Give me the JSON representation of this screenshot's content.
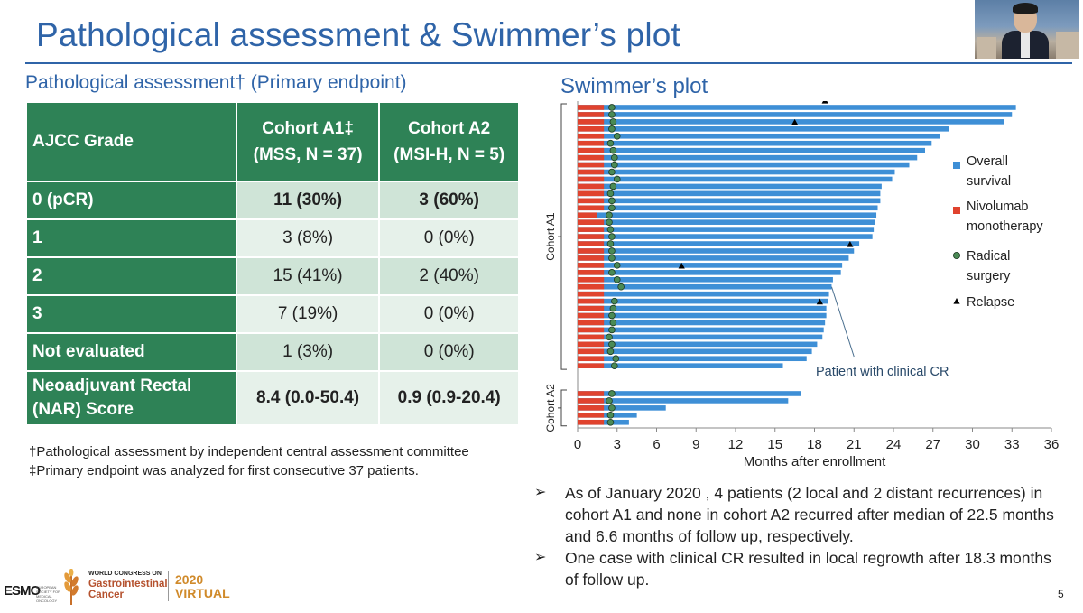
{
  "slide": {
    "title": "Pathological assessment & Swimmer’s plot",
    "page_number": "5",
    "left_heading": "Pathological assessment† (Primary endpoint)",
    "right_heading": "Swimmer’s plot"
  },
  "table": {
    "header": {
      "grade": "AJCC Grade",
      "cohort_a1_line1": "Cohort A1‡",
      "cohort_a1_line2": "(MSS, N = 37)",
      "cohort_a2_line1": "Cohort A2",
      "cohort_a2_line2": "(MSI-H, N = 5)"
    },
    "rows": [
      {
        "grade": "0 (pCR)",
        "a1": "11 (30%)",
        "a2": "3 (60%)"
      },
      {
        "grade": "1",
        "a1": "3 (8%)",
        "a2": "0 (0%)"
      },
      {
        "grade": "2",
        "a1": "15 (41%)",
        "a2": "2 (40%)"
      },
      {
        "grade": "3",
        "a1": "7 (19%)",
        "a2": "0 (0%)"
      },
      {
        "grade": "Not evaluated",
        "a1": "1 (3%)",
        "a2": "0 (0%)"
      }
    ],
    "nar": {
      "label_line1": "Neoadjuvant Rectal",
      "label_line2": "(NAR) Score",
      "a1": "8.4 (0.0-50.4)",
      "a2": "0.9 (0.9-20.4)"
    }
  },
  "footnotes": {
    "dagger": "†Pathological assessment by independent central assessment committee",
    "double_dagger": "‡Primary endpoint was analyzed for first consecutive 37 patients."
  },
  "bullets": [
    "As of January 2020 , 4  patients (2 local and 2 distant recurrences) in cohort A1 and none in cohort A2 recurred after median of 22.5 months and 6.6 months of follow up, respectively.",
    "One case with clinical CR resulted in local regrowth after 18.3 months of follow up."
  ],
  "branding": {
    "esmo": "ESMO",
    "esmo_sub": "EUROPEAN SOCIETY FOR MEDICAL ONCOLOGY",
    "congress_top": "WORLD CONGRESS ON",
    "congress_line1": "Gastrointestinal",
    "congress_line2": "Cancer",
    "virtual_line1": "2020",
    "virtual_line2": "VIRTUAL"
  },
  "colors": {
    "title": "#2f64a8",
    "header_green": "#2e8256",
    "row_light": "#cfe4d7",
    "row_lighter": "#e6f1ea",
    "overall_survival": "#3e8fd6",
    "nivolumab": "#e0432e",
    "surgery_marker": "#4a8a55",
    "relapse_marker": "#000000"
  },
  "chart_data": {
    "type": "bar",
    "subtype": "swimmer",
    "title": "Swimmer’s plot",
    "xlabel": "Months after enrollment",
    "xlim": [
      0,
      36
    ],
    "xticks": [
      "0",
      "3",
      "6",
      "9",
      "12",
      "15",
      "18",
      "21",
      "24",
      "27",
      "30",
      "33",
      "36"
    ],
    "legend": [
      "Overall survival",
      "Nivolumab monotherapy",
      "Radical surgery",
      "Relapse"
    ],
    "annotation": "Patient with clinical CR",
    "annotation_target": {
      "cohort": "A1",
      "patient_index": 25
    },
    "groups": [
      {
        "label": "Cohort A1",
        "patients": [
          {
            "os": 33.3,
            "nivo": 2.0,
            "surgery": 2.6
          },
          {
            "os": 33.0,
            "nivo": 2.0,
            "surgery": 2.6
          },
          {
            "os": 32.4,
            "nivo": 2.0,
            "surgery": 2.7
          },
          {
            "os": 28.2,
            "nivo": 2.0,
            "surgery": 2.6,
            "relapse": 16.5
          },
          {
            "os": 27.5,
            "nivo": 2.0,
            "surgery": 3.0
          },
          {
            "os": 26.9,
            "nivo": 2.0,
            "surgery": 2.5
          },
          {
            "os": 26.4,
            "nivo": 2.0,
            "surgery": 2.7
          },
          {
            "os": 25.8,
            "nivo": 2.0,
            "surgery": 2.8
          },
          {
            "os": 25.2,
            "nivo": 2.0,
            "surgery": 2.8
          },
          {
            "os": 24.1,
            "nivo": 2.0,
            "surgery": 2.6
          },
          {
            "os": 23.9,
            "nivo": 2.0,
            "surgery": 3.0
          },
          {
            "os": 23.1,
            "nivo": 2.0,
            "surgery": 2.7
          },
          {
            "os": 23.0,
            "nivo": 2.0,
            "surgery": 2.5
          },
          {
            "os": 23.0,
            "nivo": 2.0,
            "surgery": 2.6
          },
          {
            "os": 22.8,
            "nivo": 2.0,
            "surgery": 2.6
          },
          {
            "os": 22.7,
            "nivo": 1.5,
            "surgery": 2.4
          },
          {
            "os": 22.6,
            "nivo": 2.0,
            "surgery": 2.4
          },
          {
            "os": 22.5,
            "nivo": 2.0,
            "surgery": 2.5
          },
          {
            "os": 22.4,
            "nivo": 2.0,
            "surgery": 2.6
          },
          {
            "os": 21.4,
            "nivo": 2.0,
            "surgery": 2.5
          },
          {
            "os": 21.0,
            "nivo": 2.0,
            "surgery": 2.6
          },
          {
            "os": 20.6,
            "nivo": 2.0,
            "surgery": 2.6
          },
          {
            "os": 20.1,
            "nivo": 2.0,
            "surgery": 3.0
          },
          {
            "os": 20.0,
            "nivo": 2.0,
            "surgery": 2.6
          },
          {
            "os": 19.4,
            "nivo": 2.0,
            "surgery": 3.0
          },
          {
            "os": 19.3,
            "nivo": 2.0,
            "surgery": 3.3
          },
          {
            "os": 19.1,
            "nivo": 2.0
          },
          {
            "os": 19.0,
            "nivo": 2.0,
            "surgery": 2.8
          },
          {
            "os": 18.9,
            "nivo": 2.0,
            "surgery": 2.7
          },
          {
            "os": 18.9,
            "nivo": 2.0,
            "surgery": 2.6
          },
          {
            "os": 18.8,
            "nivo": 2.0,
            "surgery": 2.7
          },
          {
            "os": 18.7,
            "nivo": 2.0,
            "surgery": 2.6
          },
          {
            "os": 18.6,
            "nivo": 2.0,
            "surgery": 2.4
          },
          {
            "os": 18.2,
            "nivo": 2.0,
            "surgery": 2.6
          },
          {
            "os": 17.8,
            "nivo": 2.0,
            "surgery": 2.5
          },
          {
            "os": 17.4,
            "nivo": 2.0,
            "surgery": 2.9
          },
          {
            "os": 15.6,
            "nivo": 2.0,
            "surgery": 2.8
          }
        ],
        "relapse_points": [
          [
            0,
            18.8
          ],
          [
            3,
            16.5
          ],
          [
            20,
            20.7
          ],
          [
            23,
            7.9
          ],
          [
            28,
            18.4
          ]
        ]
      },
      {
        "label": "Cohort A2",
        "patients": [
          {
            "os": 17.0,
            "nivo": 2.0,
            "surgery": 2.6
          },
          {
            "os": 16.0,
            "nivo": 2.0,
            "surgery": 2.4
          },
          {
            "os": 6.7,
            "nivo": 2.0,
            "surgery": 2.6
          },
          {
            "os": 4.5,
            "nivo": 2.0,
            "surgery": 2.5
          },
          {
            "os": 3.9,
            "nivo": 2.0,
            "surgery": 2.5
          }
        ]
      }
    ]
  }
}
